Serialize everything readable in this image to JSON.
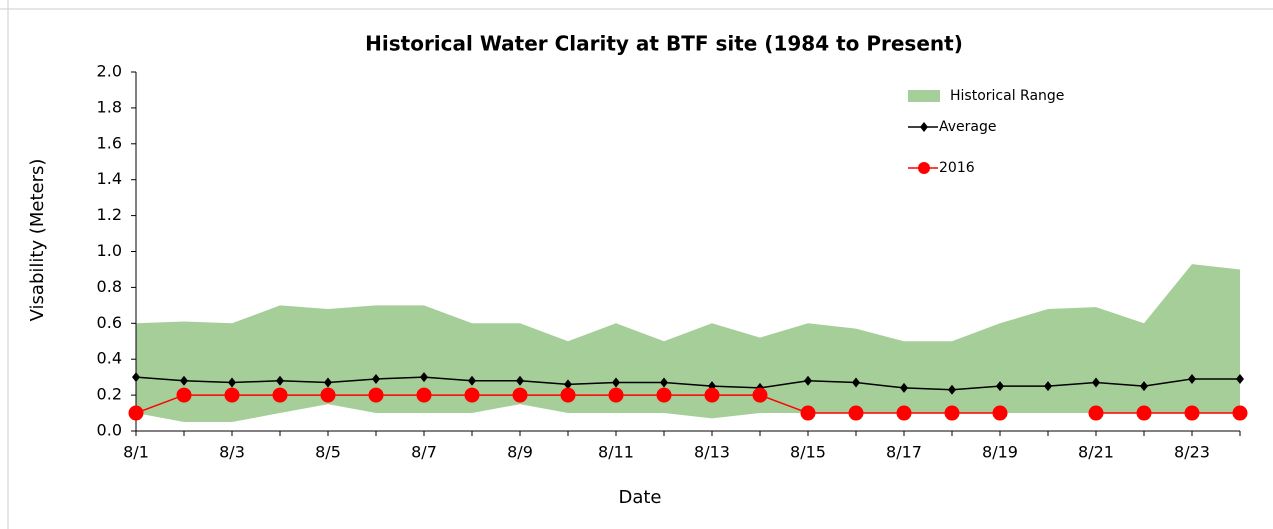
{
  "chart_data": {
    "type": "range-line",
    "title": "Historical Water Clarity at BTF site (1984 to Present)",
    "x_label": "Date",
    "y_label": "Visability  (Meters)",
    "categories": [
      "8/1",
      null,
      "8/3",
      null,
      "8/5",
      null,
      "8/7",
      null,
      "8/9",
      null,
      "8/11",
      null,
      "8/13",
      null,
      "8/15",
      null,
      "8/17",
      null,
      "8/19",
      null,
      "8/21",
      null,
      "8/23",
      null
    ],
    "ylim": [
      0,
      2
    ],
    "yticks": [
      {
        "value": 0,
        "label": "0.0"
      },
      {
        "value": 0.2,
        "label": "0.2"
      },
      {
        "value": 0.4,
        "label": "0.4"
      },
      {
        "value": 0.6,
        "label": "0.6"
      },
      {
        "value": 0.8,
        "label": "0.8"
      },
      {
        "value": 1,
        "label": "1.0"
      },
      {
        "value": 1.2,
        "label": "1.2"
      },
      {
        "value": 1.4,
        "label": "1.4"
      },
      {
        "value": 1.6,
        "label": "1.6"
      },
      {
        "value": 1.8,
        "label": "1.8"
      },
      {
        "value": 2,
        "label": "2.0"
      }
    ],
    "grid": false,
    "legend": "top-right",
    "series": [
      {
        "name": "Historical Range",
        "kind": "range",
        "color": "#a6ce99",
        "upper": [
          0.6,
          0.61,
          0.6,
          0.7,
          0.68,
          0.7,
          0.7,
          0.6,
          0.6,
          0.5,
          0.6,
          0.5,
          0.6,
          0.52,
          0.6,
          0.57,
          0.5,
          0.5,
          0.6,
          0.68,
          0.69,
          0.6,
          0.93,
          0.9
        ],
        "lower": [
          0.1,
          0.05,
          0.05,
          0.1,
          0.15,
          0.1,
          0.1,
          0.1,
          0.15,
          0.1,
          0.1,
          0.1,
          0.07,
          0.1,
          0.1,
          0.1,
          0.1,
          0.1,
          0.1,
          0.1,
          0.1,
          0.1,
          0.1,
          0.1
        ]
      },
      {
        "name": "Average",
        "kind": "line",
        "marker": "diamond",
        "color": "#000000",
        "values": [
          0.3,
          0.28,
          0.27,
          0.28,
          0.27,
          0.29,
          0.3,
          0.28,
          0.28,
          0.26,
          0.27,
          0.27,
          0.25,
          0.24,
          0.28,
          0.27,
          0.24,
          0.23,
          0.25,
          0.25,
          0.27,
          0.25,
          0.29,
          0.29
        ]
      },
      {
        "name": "2016",
        "kind": "line",
        "marker": "circle",
        "color": "#ff0000",
        "values": [
          0.1,
          0.2,
          0.2,
          0.2,
          0.2,
          0.2,
          0.2,
          0.2,
          0.2,
          0.2,
          0.2,
          0.2,
          0.2,
          0.2,
          0.1,
          0.1,
          0.1,
          0.1,
          0.1,
          null,
          0.1,
          0.1,
          0.1,
          0.1
        ]
      }
    ]
  }
}
